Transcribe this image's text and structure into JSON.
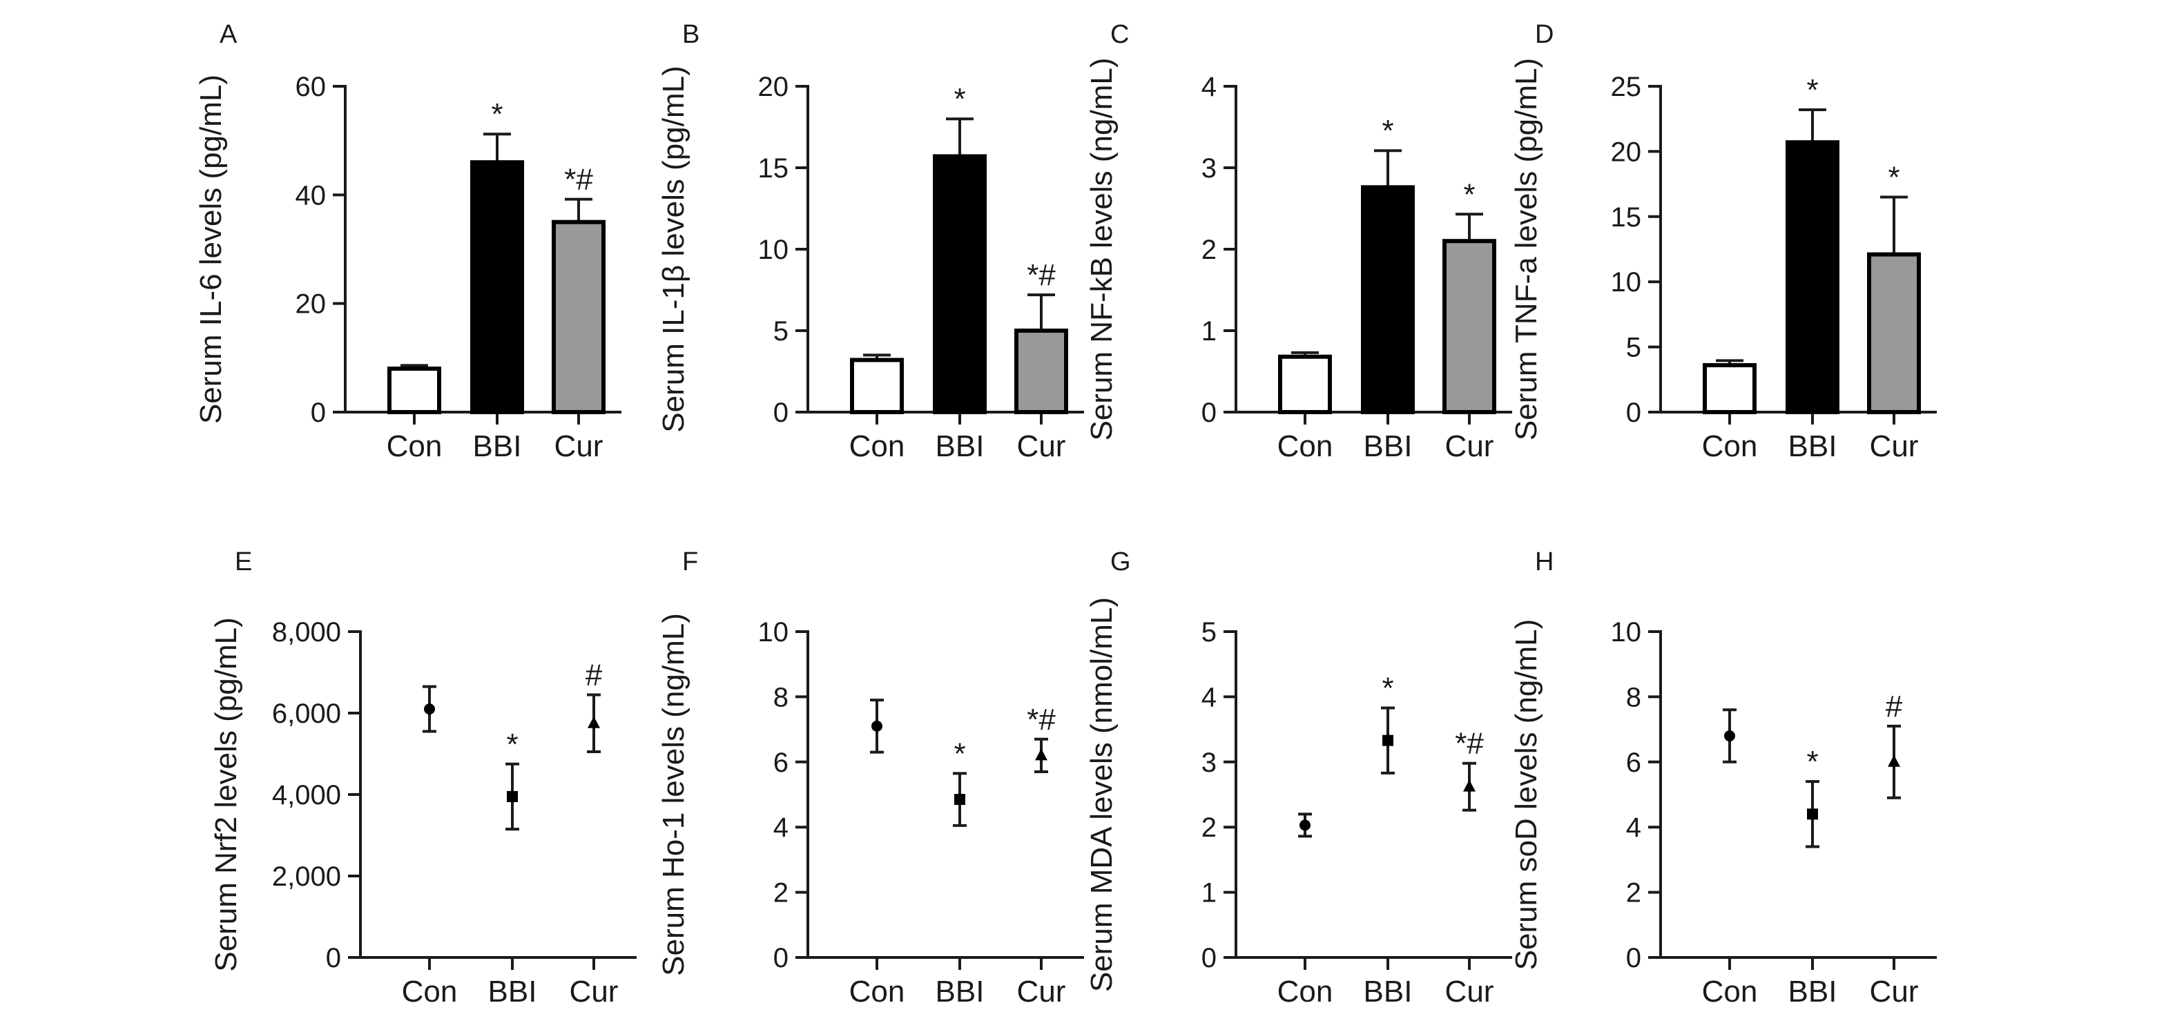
{
  "chart_data": [
    {
      "panel": "A",
      "type": "bar",
      "categories": [
        "Con",
        "BBI",
        "Cur"
      ],
      "values": [
        8,
        46,
        35
      ],
      "errors": [
        0.6,
        5.2,
        4.2
      ],
      "significance": [
        "",
        "*",
        "*#"
      ],
      "ylabel": "Serum IL-6 levels (pg/mL)",
      "ylim": [
        0,
        60
      ],
      "yticks": [
        "0",
        "20",
        "40",
        "60"
      ],
      "bar_fills": [
        "#ffffff",
        "#000000",
        "#999999"
      ]
    },
    {
      "panel": "B",
      "type": "bar",
      "categories": [
        "Con",
        "BBI",
        "Cur"
      ],
      "values": [
        3.2,
        15.7,
        5.0
      ],
      "errors": [
        0.3,
        2.3,
        2.2
      ],
      "significance": [
        "",
        "*",
        "*#"
      ],
      "ylabel": "Serum IL-1β levels (pg/mL)",
      "ylim": [
        0,
        20
      ],
      "yticks": [
        "0",
        "5",
        "10",
        "15",
        "20"
      ],
      "bar_fills": [
        "#ffffff",
        "#000000",
        "#999999"
      ]
    },
    {
      "panel": "C",
      "type": "bar",
      "categories": [
        "Con",
        "BBI",
        "Cur"
      ],
      "values": [
        0.68,
        2.76,
        2.1
      ],
      "errors": [
        0.05,
        0.45,
        0.33
      ],
      "significance": [
        "",
        "*",
        "*"
      ],
      "ylabel": "Serum NF-kB levels (ng/mL)",
      "ylim": [
        0,
        4
      ],
      "yticks": [
        "0",
        "1",
        "2",
        "3",
        "4"
      ],
      "bar_fills": [
        "#ffffff",
        "#000000",
        "#999999"
      ]
    },
    {
      "panel": "D",
      "type": "bar",
      "categories": [
        "Con",
        "BBI",
        "Cur"
      ],
      "values": [
        3.6,
        20.7,
        12.1
      ],
      "errors": [
        0.35,
        2.5,
        4.4
      ],
      "significance": [
        "",
        "*",
        "*"
      ],
      "ylabel": "Serum TNF-a levels (pg/mL)",
      "ylim": [
        0,
        25
      ],
      "yticks": [
        "0",
        "5",
        "10",
        "15",
        "20",
        "25"
      ],
      "bar_fills": [
        "#ffffff",
        "#000000",
        "#999999"
      ]
    },
    {
      "panel": "E",
      "type": "scatter",
      "categories": [
        "Con",
        "BBI",
        "Cur"
      ],
      "values": [
        6100,
        3950,
        5750
      ],
      "errors": [
        550,
        800,
        700
      ],
      "markers": [
        "circle",
        "square",
        "triangle"
      ],
      "significance": [
        "",
        "*",
        "#"
      ],
      "ylabel": "Serum Nrf2 levels (pg/mL)",
      "ylim": [
        0,
        8000
      ],
      "yticks": [
        "0",
        "2,000",
        "4,000",
        "6,000",
        "8,000"
      ]
    },
    {
      "panel": "F",
      "type": "scatter",
      "categories": [
        "Con",
        "BBI",
        "Cur"
      ],
      "values": [
        7.1,
        4.85,
        6.2
      ],
      "errors": [
        0.8,
        0.8,
        0.5
      ],
      "markers": [
        "circle",
        "square",
        "triangle"
      ],
      "significance": [
        "",
        "*",
        "*#"
      ],
      "ylabel": "Serum Ho-1 levels (ng/mL)",
      "ylim": [
        0,
        10
      ],
      "yticks": [
        "0",
        "2",
        "4",
        "6",
        "8",
        "10"
      ]
    },
    {
      "panel": "G",
      "type": "scatter",
      "categories": [
        "Con",
        "BBI",
        "Cur"
      ],
      "values": [
        2.03,
        3.33,
        2.62
      ],
      "errors": [
        0.17,
        0.5,
        0.36
      ],
      "markers": [
        "circle",
        "square",
        "triangle"
      ],
      "significance": [
        "",
        "*",
        "*#"
      ],
      "ylabel": "Serum MDA levels (nmol/mL)",
      "ylim": [
        0,
        5
      ],
      "yticks": [
        "0",
        "1",
        "2",
        "3",
        "4",
        "5"
      ]
    },
    {
      "panel": "H",
      "type": "scatter",
      "categories": [
        "Con",
        "BBI",
        "Cur"
      ],
      "values": [
        6.8,
        4.4,
        6.0
      ],
      "errors": [
        0.8,
        1.0,
        1.1
      ],
      "markers": [
        "circle",
        "square",
        "triangle"
      ],
      "significance": [
        "",
        "*",
        "#"
      ],
      "ylabel": "Serum soD levels (ng/mL)",
      "ylim": [
        0,
        10
      ],
      "yticks": [
        "0",
        "2",
        "4",
        "6",
        "8",
        "10"
      ]
    }
  ]
}
